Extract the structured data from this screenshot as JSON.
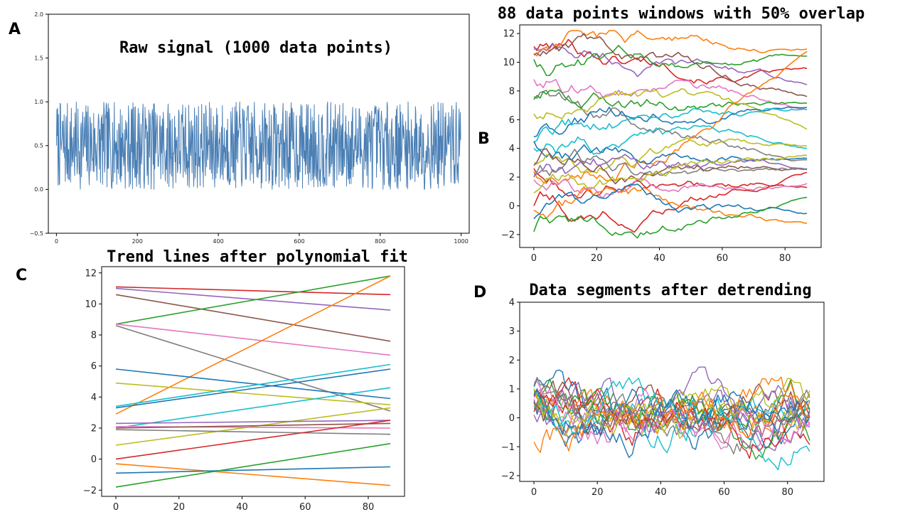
{
  "figure": {
    "panel_letters": [
      "A",
      "B",
      "C",
      "D"
    ]
  },
  "chart_data": [
    {
      "id": "A",
      "type": "line",
      "title": "Raw signal (1000 data points)",
      "xlabel": "",
      "ylabel": "",
      "xlim": [
        -20,
        1020
      ],
      "ylim": [
        -0.5,
        2.0
      ],
      "xticks": [
        0,
        200,
        400,
        600,
        800,
        1000
      ],
      "yticks": [
        -0.5,
        0.0,
        0.5,
        1.0,
        1.5,
        2.0
      ],
      "ytick_labels": [
        "−0.5",
        "0.0",
        "0.5",
        "1.0",
        "1.5",
        "2.0"
      ],
      "grid": false,
      "signal": {
        "n_points": 1000,
        "min": 0.0,
        "max": 1.0,
        "color": "#4a7fb5"
      }
    },
    {
      "id": "B",
      "type": "line",
      "title": "88 data points windows with 50% overlap",
      "xlabel": "",
      "ylabel": "",
      "xlim": [
        -4.5,
        91.5
      ],
      "ylim": [
        -2.9,
        12.6
      ],
      "xticks": [
        0,
        20,
        40,
        60,
        80
      ],
      "yticks": [
        -2,
        0,
        2,
        4,
        6,
        8,
        10,
        12
      ],
      "ytick_labels": [
        "−2",
        "0",
        "2",
        "4",
        "6",
        "8",
        "10",
        "12"
      ],
      "grid": false,
      "n_points": 88,
      "series": [
        {
          "start": 11.1,
          "end": 9.7,
          "color": "#d62728"
        },
        {
          "start": 10.9,
          "end": 8.4,
          "color": "#9467bd"
        },
        {
          "start": 10.2,
          "end": 10.5,
          "color": "#2ca02c"
        },
        {
          "start": 10.6,
          "end": 11.0,
          "color": "#ff7f0e"
        },
        {
          "start": 10.5,
          "end": 7.6,
          "color": "#8c564b"
        },
        {
          "start": 8.8,
          "end": 6.5,
          "color": "#e377c2"
        },
        {
          "start": 7.6,
          "end": 3.5,
          "color": "#7f7f7f"
        },
        {
          "start": 7.4,
          "end": 6.9,
          "color": "#2ca02c"
        },
        {
          "start": 6.4,
          "end": 4.8,
          "color": "#bcbd22"
        },
        {
          "start": 4.8,
          "end": 7.0,
          "color": "#1f77b4"
        },
        {
          "start": 2.4,
          "end": 11.2,
          "color": "#ff7f0e"
        },
        {
          "start": 4.0,
          "end": 3.6,
          "color": "#17becf"
        },
        {
          "start": 4.4,
          "end": 6.6,
          "color": "#17becf"
        },
        {
          "start": 4.5,
          "end": 3.4,
          "color": "#1f77b4"
        },
        {
          "start": 3.0,
          "end": 3.9,
          "color": "#bcbd22"
        },
        {
          "start": 2.8,
          "end": 2.8,
          "color": "#8c564b"
        },
        {
          "start": 2.6,
          "end": 1.5,
          "color": "#d62728"
        },
        {
          "start": 2.2,
          "end": 2.3,
          "color": "#9467bd"
        },
        {
          "start": 2.0,
          "end": 2.2,
          "color": "#7f7f7f"
        },
        {
          "start": 1.8,
          "end": 1.9,
          "color": "#e377c2"
        },
        {
          "start": 0.9,
          "end": 3.5,
          "color": "#bcbd22"
        },
        {
          "start": 0.0,
          "end": 2.6,
          "color": "#d62728"
        },
        {
          "start": -0.3,
          "end": -1.4,
          "color": "#ff7f0e"
        },
        {
          "start": -0.9,
          "end": -0.7,
          "color": "#1f77b4"
        },
        {
          "start": -1.8,
          "end": 0.9,
          "color": "#2ca02c"
        }
      ]
    },
    {
      "id": "C",
      "type": "line",
      "title": "Trend lines after polynomial fit",
      "xlabel": "",
      "ylabel": "",
      "xlim": [
        -4.5,
        91.5
      ],
      "ylim": [
        -2.4,
        12.4
      ],
      "xticks": [
        0,
        20,
        40,
        60,
        80
      ],
      "yticks": [
        -2,
        0,
        2,
        4,
        6,
        8,
        10,
        12
      ],
      "ytick_labels": [
        "−2",
        "0",
        "2",
        "4",
        "6",
        "8",
        "10",
        "12"
      ],
      "grid": false,
      "x_range": [
        0,
        87
      ],
      "series": [
        {
          "x": [
            0,
            87
          ],
          "y": [
            11.1,
            10.6
          ],
          "color": "#d62728"
        },
        {
          "x": [
            0,
            87
          ],
          "y": [
            11.0,
            9.6
          ],
          "color": "#9467bd"
        },
        {
          "x": [
            0,
            87
          ],
          "y": [
            10.6,
            7.6
          ],
          "color": "#8c564b"
        },
        {
          "x": [
            0,
            87
          ],
          "y": [
            8.7,
            11.8
          ],
          "color": "#2ca02c"
        },
        {
          "x": [
            0,
            87
          ],
          "y": [
            8.7,
            6.7
          ],
          "color": "#e377c2"
        },
        {
          "x": [
            0,
            87
          ],
          "y": [
            8.6,
            3.1
          ],
          "color": "#7f7f7f"
        },
        {
          "x": [
            0,
            87
          ],
          "y": [
            2.9,
            11.8
          ],
          "color": "#ff7f0e"
        },
        {
          "x": [
            0,
            87
          ],
          "y": [
            5.8,
            3.9
          ],
          "color": "#1f77b4"
        },
        {
          "x": [
            0,
            87
          ],
          "y": [
            4.9,
            3.5
          ],
          "color": "#bcbd22"
        },
        {
          "x": [
            0,
            87
          ],
          "y": [
            3.4,
            6.1
          ],
          "color": "#17becf"
        },
        {
          "x": [
            0,
            87
          ],
          "y": [
            2.0,
            4.6
          ],
          "color": "#17becf"
        },
        {
          "x": [
            0,
            87
          ],
          "y": [
            3.3,
            5.8
          ],
          "color": "#1f77b4"
        },
        {
          "x": [
            0,
            87
          ],
          "y": [
            0.9,
            3.3
          ],
          "color": "#bcbd22"
        },
        {
          "x": [
            0,
            87
          ],
          "y": [
            2.3,
            2.5
          ],
          "color": "#9467bd"
        },
        {
          "x": [
            0,
            87
          ],
          "y": [
            2.1,
            2.0
          ],
          "color": "#e377c2"
        },
        {
          "x": [
            0,
            87
          ],
          "y": [
            2.0,
            2.3
          ],
          "color": "#8c564b"
        },
        {
          "x": [
            0,
            87
          ],
          "y": [
            1.9,
            1.6
          ],
          "color": "#7f7f7f"
        },
        {
          "x": [
            0,
            87
          ],
          "y": [
            0.0,
            2.5
          ],
          "color": "#d62728"
        },
        {
          "x": [
            0,
            87
          ],
          "y": [
            -0.3,
            -1.7
          ],
          "color": "#ff7f0e"
        },
        {
          "x": [
            0,
            87
          ],
          "y": [
            -0.9,
            -0.5
          ],
          "color": "#1f77b4"
        },
        {
          "x": [
            0,
            87
          ],
          "y": [
            -1.8,
            1.0
          ],
          "color": "#2ca02c"
        }
      ]
    },
    {
      "id": "D",
      "type": "line",
      "title": "Data segments after detrending",
      "xlabel": "",
      "ylabel": "",
      "xlim": [
        -4.5,
        91.5
      ],
      "ylim": [
        -2.2,
        4.0
      ],
      "xticks": [
        0,
        20,
        40,
        60,
        80
      ],
      "yticks": [
        -2,
        -1,
        0,
        1,
        2,
        3,
        4
      ],
      "ytick_labels": [
        "−2",
        "−1",
        "0",
        "1",
        "2",
        "3",
        "4"
      ],
      "grid": false,
      "n_points": 88,
      "amplitude": [
        -1.8,
        2.3
      ],
      "palette": [
        "#1f77b4",
        "#ff7f0e",
        "#2ca02c",
        "#d62728",
        "#9467bd",
        "#8c564b",
        "#e377c2",
        "#7f7f7f",
        "#bcbd22",
        "#17becf"
      ],
      "n_series": 22
    }
  ]
}
